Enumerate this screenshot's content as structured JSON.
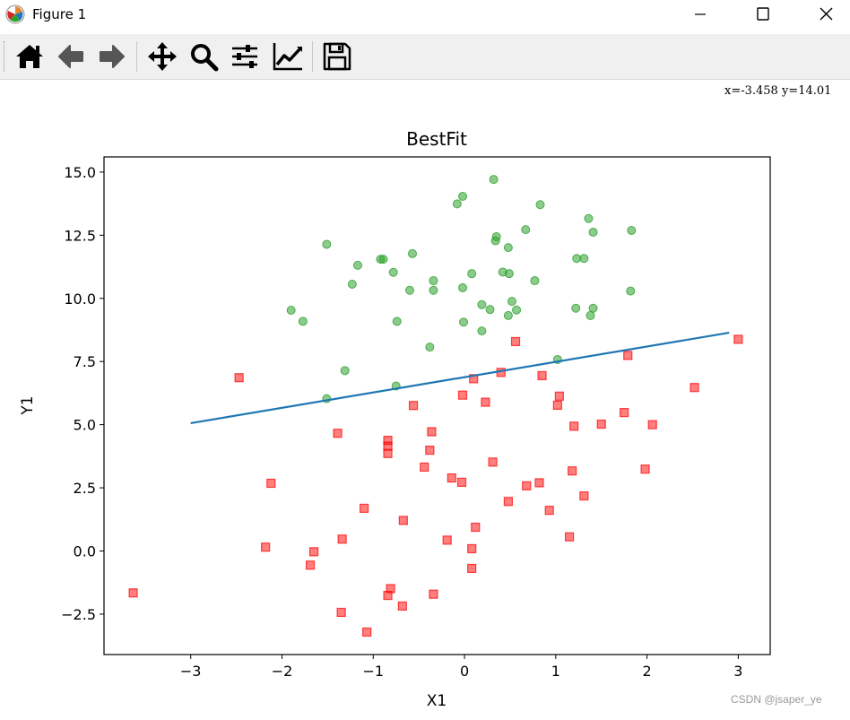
{
  "window": {
    "title": "Figure 1",
    "icons": [
      "matplotlib-logo-icon",
      "minimize-icon",
      "maximize-icon",
      "close-icon"
    ]
  },
  "toolbar": {
    "buttons": [
      "home-icon",
      "back-arrow-icon",
      "forward-arrow-icon",
      "pan-icon",
      "zoom-icon",
      "configure-subplots-icon",
      "edit-axis-icon",
      "save-icon"
    ],
    "coords": "x=-3.458  y=14.01"
  },
  "watermark": "CSDN @jsaper_ye",
  "colors": {
    "line": "#1f77b4",
    "class0": "#2ca02c",
    "class1": "#ff0000"
  },
  "chart_data": {
    "type": "scatter",
    "title": "BestFit",
    "xlabel": "X1",
    "ylabel": "Y1",
    "xlim": [
      -3.95,
      3.35
    ],
    "ylim": [
      -4.1,
      15.6
    ],
    "xticks": [
      "−3",
      "−2",
      "−1",
      "0",
      "1",
      "2",
      "3"
    ],
    "yticks": [
      "−2.5",
      "0.0",
      "2.5",
      "5.0",
      "7.5",
      "10.0",
      "12.5",
      "15.0"
    ],
    "legend": "none",
    "grid": false,
    "series": [
      {
        "marker": "circle",
        "color": "#2ca02c",
        "points": [
          [
            0.32,
            14.71
          ],
          [
            -0.02,
            14.04
          ],
          [
            -0.08,
            13.74
          ],
          [
            0.83,
            13.71
          ],
          [
            1.36,
            13.16
          ],
          [
            0.67,
            12.72
          ],
          [
            1.83,
            12.69
          ],
          [
            1.41,
            12.62
          ],
          [
            0.35,
            12.44
          ],
          [
            0.34,
            12.28
          ],
          [
            -1.51,
            12.14
          ],
          [
            0.48,
            12.01
          ],
          [
            -0.57,
            11.77
          ],
          [
            1.23,
            11.58
          ],
          [
            1.31,
            11.58
          ],
          [
            -0.92,
            11.55
          ],
          [
            -0.89,
            11.55
          ],
          [
            -1.17,
            11.31
          ],
          [
            0.42,
            11.04
          ],
          [
            0.49,
            10.98
          ],
          [
            0.08,
            10.98
          ],
          [
            -0.78,
            11.03
          ],
          [
            0.77,
            10.7
          ],
          [
            -0.34,
            10.7
          ],
          [
            -1.23,
            10.56
          ],
          [
            -0.02,
            10.42
          ],
          [
            -0.6,
            10.32
          ],
          [
            -0.34,
            10.32
          ],
          [
            1.82,
            10.29
          ],
          [
            0.52,
            9.88
          ],
          [
            0.19,
            9.75
          ],
          [
            1.22,
            9.61
          ],
          [
            1.41,
            9.61
          ],
          [
            0.28,
            9.56
          ],
          [
            0.57,
            9.54
          ],
          [
            -1.9,
            9.53
          ],
          [
            0.48,
            9.32
          ],
          [
            1.38,
            9.32
          ],
          [
            -1.77,
            9.09
          ],
          [
            -0.74,
            9.09
          ],
          [
            -0.01,
            9.06
          ],
          [
            0.19,
            8.71
          ],
          [
            -0.38,
            8.07
          ],
          [
            1.02,
            7.58
          ],
          [
            -1.31,
            7.14
          ],
          [
            -0.75,
            6.53
          ],
          [
            -1.51,
            6.03
          ]
        ]
      },
      {
        "marker": "square",
        "color": "#ff0000",
        "points": [
          [
            3.0,
            8.38
          ],
          [
            0.56,
            8.29
          ],
          [
            1.79,
            7.74
          ],
          [
            0.4,
            7.07
          ],
          [
            0.85,
            6.94
          ],
          [
            -2.47,
            6.86
          ],
          [
            0.1,
            6.82
          ],
          [
            2.52,
            6.47
          ],
          [
            -0.02,
            6.17
          ],
          [
            1.04,
            6.13
          ],
          [
            0.23,
            5.89
          ],
          [
            1.02,
            5.77
          ],
          [
            -0.56,
            5.76
          ],
          [
            1.75,
            5.48
          ],
          [
            1.5,
            5.02
          ],
          [
            2.06,
            5.0
          ],
          [
            1.2,
            4.94
          ],
          [
            -0.36,
            4.72
          ],
          [
            -1.39,
            4.66
          ],
          [
            -0.84,
            4.38
          ],
          [
            -0.84,
            4.15
          ],
          [
            -0.38,
            3.99
          ],
          [
            -0.84,
            3.86
          ],
          [
            0.31,
            3.52
          ],
          [
            -0.44,
            3.32
          ],
          [
            1.18,
            3.17
          ],
          [
            1.98,
            3.24
          ],
          [
            -0.14,
            2.89
          ],
          [
            -0.03,
            2.72
          ],
          [
            -2.12,
            2.68
          ],
          [
            0.82,
            2.7
          ],
          [
            0.68,
            2.58
          ],
          [
            1.31,
            2.18
          ],
          [
            0.48,
            1.96
          ],
          [
            -1.1,
            1.69
          ],
          [
            0.93,
            1.61
          ],
          [
            -0.67,
            1.21
          ],
          [
            0.12,
            0.94
          ],
          [
            1.15,
            0.56
          ],
          [
            -1.34,
            0.47
          ],
          [
            -0.19,
            0.43
          ],
          [
            -2.18,
            0.15
          ],
          [
            0.08,
            0.09
          ],
          [
            -1.65,
            -0.03
          ],
          [
            -1.69,
            -0.56
          ],
          [
            0.08,
            -0.69
          ],
          [
            -3.63,
            -1.66
          ],
          [
            -0.81,
            -1.49
          ],
          [
            -0.34,
            -1.71
          ],
          [
            -0.84,
            -1.76
          ],
          [
            -0.68,
            -2.18
          ],
          [
            -1.35,
            -2.43
          ],
          [
            -1.07,
            -3.21
          ]
        ]
      },
      {
        "type": "line",
        "color": "#1f77b4",
        "x": [
          -3.0,
          2.9
        ],
        "y": [
          5.06,
          8.64
        ]
      }
    ]
  }
}
